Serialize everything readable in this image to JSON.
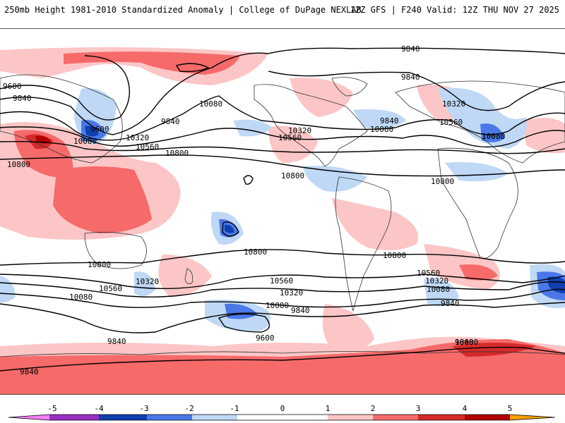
{
  "header": {
    "title_left": "250mb Height 1981-2010 Standardized Anomaly | College of DuPage NEXLAB",
    "title_right": "12Z GFS | F240 Valid: 12Z THU NOV 27 2025"
  },
  "colors": {
    "anom_neg5": "#f57df5",
    "anom_neg4": "#9a2fc6",
    "anom_neg3": "#1040b0",
    "anom_neg2": "#4a78e8",
    "anom_neg1": "#bfd8f5",
    "anom_zero": "#ffffff",
    "anom_pos1": "#fcc6c6",
    "anom_pos2": "#f66a6a",
    "anom_pos3": "#d62a2a",
    "anom_pos4": "#b00000",
    "anom_pos5": "#f5a000",
    "coast": "#333333",
    "contour": "#000000"
  },
  "colorbar": {
    "tick_labels": [
      "-5",
      "-4",
      "-3",
      "-2",
      "-1",
      "0",
      "1",
      "2",
      "3",
      "4",
      "5"
    ]
  },
  "contour_labels": [
    "9840",
    "9840",
    "9600",
    "9840",
    "9840",
    "10080",
    "9600",
    "10080",
    "10320",
    "10560",
    "10800",
    "10800",
    "10080",
    "10320",
    "10560",
    "9840",
    "10080",
    "10320",
    "10560",
    "10080",
    "10800",
    "10800",
    "10800",
    "10800",
    "10800",
    "10560",
    "10320",
    "10080",
    "9840",
    "9600",
    "9840",
    "10560",
    "10320",
    "10080",
    "9840",
    "10080",
    "10560",
    "10320",
    "10080",
    "9840",
    "9840"
  ]
}
